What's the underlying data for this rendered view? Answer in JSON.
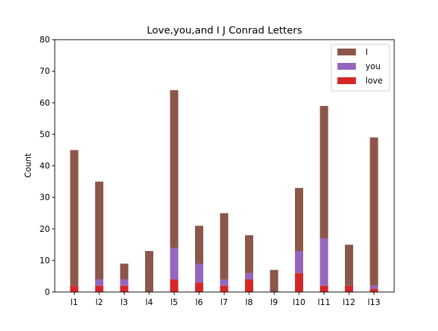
{
  "chart_data": {
    "type": "bar",
    "stacked": true,
    "title": "Love,you,and I J Conrad Letters",
    "xlabel": "",
    "ylabel": "Count",
    "ylim": [
      0,
      80
    ],
    "yticks": [
      0,
      10,
      20,
      30,
      40,
      50,
      60,
      70,
      80
    ],
    "categories": [
      "l1",
      "l2",
      "l3",
      "l4",
      "l5",
      "l6",
      "l7",
      "l8",
      "l9",
      "l10",
      "l11",
      "l12",
      "l13"
    ],
    "series": [
      {
        "name": "love",
        "color": "#d62728",
        "values": [
          2,
          2,
          2,
          0,
          4,
          3,
          2,
          4,
          0,
          6,
          2,
          2,
          1
        ]
      },
      {
        "name": "you",
        "color": "#9467bd",
        "values": [
          0,
          2,
          2,
          0,
          10,
          6,
          2,
          2,
          0,
          7,
          15,
          0,
          1
        ]
      },
      {
        "name": "I",
        "color": "#8c564b",
        "values": [
          43,
          31,
          5,
          13,
          50,
          12,
          21,
          12,
          7,
          20,
          42,
          13,
          47
        ]
      }
    ],
    "legend": {
      "position": "top-right",
      "order": [
        "I",
        "you",
        "love"
      ]
    },
    "grid": false
  }
}
